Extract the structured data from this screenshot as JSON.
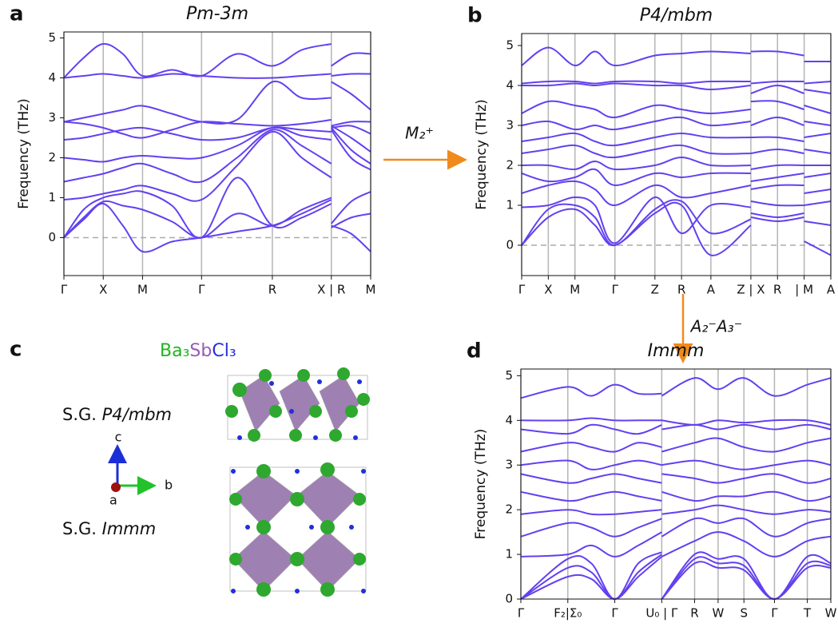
{
  "chart_data": [
    {
      "type": "line",
      "panel": "a",
      "title": "Pm-3m",
      "ylabel": "Frequency (THz)",
      "color": "#6340f0",
      "ylim": [
        -0.95,
        5.15
      ],
      "yticks": [
        0,
        1,
        2,
        3,
        4,
        5
      ],
      "xlim": [
        0,
        7.8
      ],
      "xticks": [
        {
          "value": 0,
          "label": "Γ"
        },
        {
          "value": 1,
          "label": "X"
        },
        {
          "value": 2,
          "label": "M"
        },
        {
          "value": 3.5,
          "label": "Γ"
        },
        {
          "value": 5.3,
          "label": "R"
        },
        {
          "value": 6.8,
          "label": "X | R"
        },
        {
          "value": 7.8,
          "label": "M"
        }
      ],
      "vlines": true,
      "zero_line": true,
      "x": [
        0,
        0.5,
        1,
        1.5,
        2,
        2.75,
        3.5,
        4.4,
        5.3,
        6.05,
        6.8,
        6.8,
        6.8,
        7.3,
        7.8
      ],
      "series": [
        {
          "values": [
            0,
            0.45,
            0.85,
            0.3,
            -0.35,
            -0.1,
            0,
            0.15,
            0.3,
            0.6,
            0.95,
            null,
            0.3,
            0.1,
            -0.35
          ]
        },
        {
          "values": [
            0,
            0.5,
            0.9,
            0.8,
            0.7,
            0.4,
            0,
            0.6,
            0.3,
            0.7,
            1.0,
            null,
            0.25,
            0.5,
            0.6
          ]
        },
        {
          "values": [
            0,
            0.7,
            1.0,
            1.1,
            1.15,
            0.8,
            0,
            1.5,
            0.3,
            0.5,
            0.85,
            null,
            0.35,
            0.9,
            1.15
          ]
        },
        {
          "values": [
            0.95,
            1.0,
            1.1,
            1.2,
            1.3,
            1.1,
            0.95,
            1.8,
            2.65,
            2.0,
            1.5,
            null,
            2.7,
            2.0,
            1.7
          ]
        },
        {
          "values": [
            1.4,
            1.5,
            1.6,
            1.75,
            1.85,
            1.6,
            1.4,
            2.0,
            2.7,
            2.3,
            1.85,
            null,
            2.75,
            2.2,
            1.85
          ]
        },
        {
          "values": [
            2.0,
            1.95,
            1.9,
            2.0,
            2.05,
            2.0,
            2.0,
            2.3,
            2.75,
            2.55,
            2.45,
            null,
            2.8,
            2.5,
            2.15
          ]
        },
        {
          "values": [
            2.45,
            2.5,
            2.6,
            2.7,
            2.75,
            2.6,
            2.45,
            2.5,
            2.75,
            2.7,
            2.65,
            null,
            2.75,
            2.8,
            2.6
          ]
        },
        {
          "values": [
            2.9,
            2.85,
            2.75,
            2.6,
            2.5,
            2.7,
            2.9,
            2.85,
            2.8,
            2.85,
            2.95,
            null,
            2.8,
            2.9,
            2.9
          ]
        },
        {
          "values": [
            2.9,
            3.0,
            3.1,
            3.2,
            3.3,
            3.1,
            2.9,
            2.95,
            3.9,
            3.5,
            3.5,
            null,
            3.9,
            3.6,
            3.2
          ]
        },
        {
          "values": [
            4.0,
            4.05,
            4.1,
            4.05,
            4.0,
            4.1,
            4.05,
            4.0,
            4.0,
            4.05,
            4.1,
            null,
            4.05,
            4.1,
            4.1
          ]
        },
        {
          "values": [
            4.0,
            4.5,
            4.85,
            4.6,
            4.05,
            4.2,
            4.05,
            4.6,
            4.3,
            4.7,
            4.85,
            null,
            4.3,
            4.6,
            4.6
          ]
        }
      ]
    },
    {
      "type": "line",
      "panel": "b",
      "title": "P4/mbm",
      "ylabel": "Frequency (THz)",
      "color": "#6340f0",
      "ylim": [
        -0.76,
        5.3
      ],
      "yticks": [
        0,
        1,
        2,
        3,
        4,
        5
      ],
      "xlim": [
        0,
        11.6
      ],
      "xticks": [
        {
          "value": 0,
          "label": "Γ"
        },
        {
          "value": 1,
          "label": "X"
        },
        {
          "value": 2,
          "label": "M"
        },
        {
          "value": 3.5,
          "label": "Γ"
        },
        {
          "value": 5,
          "label": "Z"
        },
        {
          "value": 6,
          "label": "R"
        },
        {
          "value": 7.1,
          "label": "A"
        },
        {
          "value": 8.6,
          "label": "Z | X"
        },
        {
          "value": 9.6,
          "label": "R"
        },
        {
          "value": 10.6,
          "label": "| M"
        },
        {
          "value": 11.6,
          "label": "A"
        }
      ],
      "vlines": true,
      "zero_line": true,
      "x": [
        0,
        1,
        2,
        2.75,
        3.5,
        5,
        6,
        7.1,
        8.6,
        8.6,
        8.6,
        9.6,
        10.6,
        10.6,
        10.6,
        11.6
      ],
      "series": [
        {
          "values": [
            0,
            0.7,
            0.9,
            0.5,
            0,
            0.8,
            1.0,
            -0.25,
            0.5,
            null,
            0.7,
            0.6,
            0.7,
            null,
            0.1,
            -0.25
          ]
        },
        {
          "values": [
            0,
            0.9,
            1.0,
            0.7,
            0,
            0.9,
            1.1,
            0.3,
            0.65,
            null,
            0.8,
            0.7,
            0.8,
            null,
            0.6,
            0.5
          ]
        },
        {
          "values": [
            0.95,
            1.0,
            1.2,
            1.0,
            0.05,
            1.2,
            0.3,
            1.0,
            0.95,
            null,
            1.1,
            1.0,
            1.0,
            null,
            1.0,
            1.1
          ]
        },
        {
          "values": [
            1.3,
            1.5,
            1.6,
            1.4,
            1.0,
            1.5,
            1.2,
            1.3,
            1.5,
            null,
            1.4,
            1.5,
            1.5,
            null,
            1.3,
            1.4
          ]
        },
        {
          "values": [
            1.8,
            1.6,
            1.7,
            1.9,
            1.5,
            1.8,
            1.7,
            1.8,
            1.8,
            null,
            1.6,
            1.7,
            1.8,
            null,
            1.7,
            1.8
          ]
        },
        {
          "values": [
            2.0,
            2.0,
            1.9,
            2.1,
            1.9,
            2.0,
            2.2,
            2.0,
            2.0,
            null,
            1.9,
            2.0,
            2.0,
            null,
            2.0,
            2.0
          ]
        },
        {
          "values": [
            2.3,
            2.4,
            2.5,
            2.3,
            2.2,
            2.4,
            2.5,
            2.3,
            2.3,
            null,
            2.3,
            2.4,
            2.3,
            null,
            2.4,
            2.3
          ]
        },
        {
          "values": [
            2.6,
            2.7,
            2.8,
            2.6,
            2.5,
            2.7,
            2.8,
            2.7,
            2.7,
            null,
            2.7,
            2.7,
            2.6,
            null,
            2.7,
            2.8
          ]
        },
        {
          "values": [
            3.0,
            3.1,
            2.9,
            3.0,
            2.9,
            3.1,
            3.2,
            3.0,
            3.1,
            null,
            3.0,
            3.2,
            3.0,
            null,
            3.1,
            3.0
          ]
        },
        {
          "values": [
            3.3,
            3.6,
            3.5,
            3.4,
            3.2,
            3.5,
            3.4,
            3.3,
            3.4,
            null,
            3.6,
            3.6,
            3.4,
            null,
            3.5,
            3.3
          ]
        },
        {
          "values": [
            4.0,
            4.0,
            4.05,
            4.0,
            4.05,
            4.0,
            4.0,
            3.9,
            4.0,
            null,
            3.8,
            4.0,
            3.8,
            null,
            3.9,
            3.8
          ]
        },
        {
          "values": [
            4.05,
            4.1,
            4.1,
            4.05,
            4.1,
            4.1,
            4.05,
            4.1,
            4.1,
            null,
            4.05,
            4.1,
            4.1,
            null,
            4.05,
            4.1
          ]
        },
        {
          "values": [
            4.5,
            4.95,
            4.5,
            4.85,
            4.5,
            4.75,
            4.8,
            4.85,
            4.8,
            null,
            4.85,
            4.85,
            4.75,
            null,
            4.6,
            4.6
          ]
        }
      ]
    },
    {
      "type": "line",
      "panel": "d",
      "title": "Immm",
      "ylabel": "Frequency (THz)",
      "color": "#6340f0",
      "ylim": [
        0,
        5.15
      ],
      "yticks": [
        0,
        1,
        2,
        3,
        4,
        5
      ],
      "xlim": [
        0,
        6.6
      ],
      "xticks": [
        {
          "value": 0,
          "label": "Γ"
        },
        {
          "value": 1,
          "label": "F₂|Σ₀"
        },
        {
          "value": 2,
          "label": "Γ"
        },
        {
          "value": 3,
          "label": "U₀ | Γ"
        },
        {
          "value": 3.7,
          "label": "R"
        },
        {
          "value": 4.2,
          "label": "W"
        },
        {
          "value": 4.75,
          "label": "S"
        },
        {
          "value": 5.4,
          "label": "Γ"
        },
        {
          "value": 6.1,
          "label": "T"
        },
        {
          "value": 6.6,
          "label": "W"
        }
      ],
      "vlines": true,
      "zero_line": false,
      "x": [
        0,
        1,
        1.5,
        2,
        2.5,
        3,
        3,
        3,
        3.7,
        4.2,
        4.75,
        5.4,
        6.1,
        6.6
      ],
      "series": [
        {
          "values": [
            0,
            0.5,
            0.45,
            0,
            0.5,
            0.95,
            null,
            0,
            0.8,
            0.7,
            0.65,
            0,
            0.7,
            0.7
          ]
        },
        {
          "values": [
            0,
            0.7,
            0.6,
            0,
            0.6,
            1.0,
            null,
            0,
            0.9,
            0.8,
            0.75,
            0,
            0.8,
            0.75
          ]
        },
        {
          "values": [
            0,
            0.9,
            0.8,
            0,
            0.8,
            1.05,
            null,
            0,
            1.0,
            0.9,
            0.9,
            0,
            0.95,
            0.8
          ]
        },
        {
          "values": [
            0.95,
            1.0,
            1.2,
            0.95,
            1.2,
            1.5,
            null,
            0.95,
            1.3,
            1.5,
            1.3,
            0.95,
            1.3,
            1.4
          ]
        },
        {
          "values": [
            1.4,
            1.7,
            1.6,
            1.4,
            1.6,
            1.8,
            null,
            1.4,
            1.8,
            1.7,
            1.8,
            1.4,
            1.7,
            1.8
          ]
        },
        {
          "values": [
            1.9,
            2.0,
            1.9,
            1.9,
            1.95,
            2.0,
            null,
            1.9,
            2.0,
            2.1,
            2.0,
            1.9,
            2.0,
            1.95
          ]
        },
        {
          "values": [
            2.4,
            2.2,
            2.3,
            2.4,
            2.3,
            2.2,
            null,
            2.4,
            2.2,
            2.3,
            2.3,
            2.4,
            2.2,
            2.3
          ]
        },
        {
          "values": [
            2.8,
            2.6,
            2.7,
            2.8,
            2.7,
            2.6,
            null,
            2.8,
            2.7,
            2.6,
            2.7,
            2.8,
            2.6,
            2.7
          ]
        },
        {
          "values": [
            3.0,
            3.1,
            2.9,
            3.0,
            3.1,
            3.0,
            null,
            3.0,
            3.1,
            3.0,
            2.9,
            3.0,
            3.1,
            3.0
          ]
        },
        {
          "values": [
            3.3,
            3.5,
            3.4,
            3.3,
            3.5,
            3.4,
            null,
            3.3,
            3.5,
            3.6,
            3.4,
            3.3,
            3.5,
            3.6
          ]
        },
        {
          "values": [
            3.8,
            3.7,
            3.9,
            3.8,
            3.7,
            3.9,
            null,
            3.8,
            3.9,
            3.8,
            3.9,
            3.8,
            3.9,
            3.8
          ]
        },
        {
          "values": [
            4.0,
            4.0,
            4.05,
            4.0,
            4.0,
            4.0,
            null,
            4.0,
            3.9,
            4.0,
            3.95,
            4.0,
            4.0,
            3.9
          ]
        },
        {
          "values": [
            4.5,
            4.75,
            4.55,
            4.8,
            4.6,
            4.6,
            null,
            4.55,
            4.95,
            4.7,
            4.95,
            4.55,
            4.8,
            4.95
          ]
        }
      ]
    }
  ],
  "transitions": [
    "M₂⁺",
    "A₂⁻A₃⁻"
  ],
  "crystal": {
    "panel": "c",
    "formula": [
      "Ba₃",
      "Sb",
      "Cl₃"
    ],
    "sg_top": [
      "S.G. ",
      "P4/mbm"
    ],
    "sg_bottom": [
      "S.G. ",
      "Immm"
    ],
    "axes": [
      "c",
      "b",
      "a"
    ]
  }
}
